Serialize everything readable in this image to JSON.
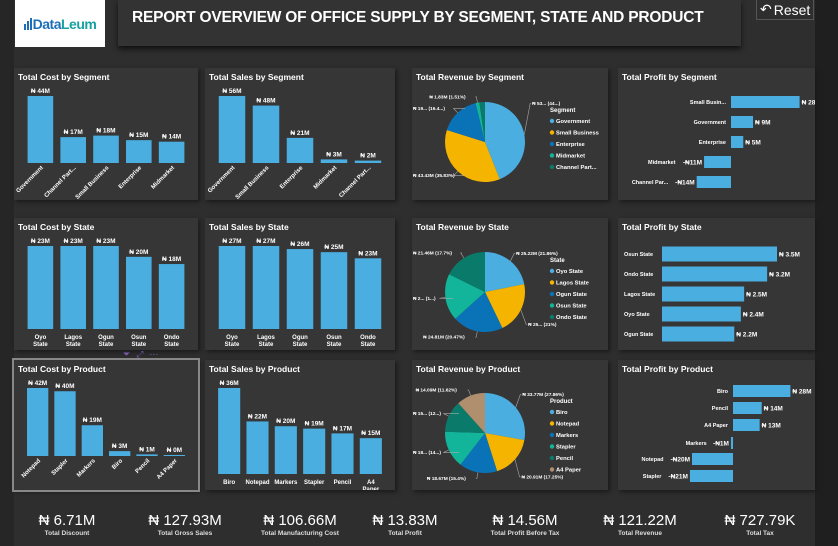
{
  "header": {
    "logo_text": "DataLeum",
    "title": "REPORT OVERVIEW OF OFFICE SUPPLY BY SEGMENT, STATE AND PRODUCT",
    "reset_label": "Reset"
  },
  "colors": {
    "bar": "#4aaee0",
    "pie": [
      "#4aaee0",
      "#f5b400",
      "#0a73b8",
      "#12b59a",
      "#0a7b6b",
      "#b08f6e"
    ]
  },
  "charts": [
    {
      "id": "cost-segment",
      "title": "Total Cost by Segment",
      "type": "vbar",
      "categories": [
        "Government",
        "Channel Part...",
        "Small Business",
        "Enterprise",
        "Midmarket"
      ],
      "values": [
        44,
        17,
        18,
        15,
        14
      ],
      "labels": [
        "₦ 44M",
        "₦ 17M",
        "₦ 18M",
        "₦ 15M",
        "₦ 14M"
      ]
    },
    {
      "id": "sales-segment",
      "title": "Total Sales by Segment",
      "type": "vbar",
      "categories": [
        "Government",
        "Small Business",
        "Enterprise",
        "Midmarket",
        "Channel Part..."
      ],
      "values": [
        56,
        48,
        21,
        3,
        2
      ],
      "labels": [
        "₦ 56M",
        "₦ 48M",
        "₦ 21M",
        "₦ 3M",
        "₦ 2M"
      ]
    },
    {
      "id": "revenue-segment",
      "title": "Total Revenue by Segment",
      "type": "pie",
      "legend_title": "Segment",
      "categories": [
        "Government",
        "Small Business",
        "Enterprise",
        "Midmarket",
        "Channel Part..."
      ],
      "values": [
        44,
        35.83,
        16.4,
        1.51,
        2.26
      ],
      "labels": [
        "₦ 53... (44...)",
        "₦ 43.43M (35.83%)",
        "₦ 19... (16.4...)",
        "₦ 1.83M (1.51%)",
        ""
      ]
    },
    {
      "id": "profit-segment",
      "title": "Total Profit by Segment",
      "type": "hbar",
      "categories": [
        "Small Busin...",
        "Government",
        "Enterprise",
        "Midmarket",
        "Channel Par..."
      ],
      "values": [
        28,
        9,
        5,
        -11,
        -14
      ],
      "labels": [
        "₦ 28M",
        "₦ 9M",
        "₦ 5M",
        "-₦11M",
        "-₦14M"
      ]
    },
    {
      "id": "cost-state",
      "title": "Total Cost by State",
      "type": "vbar",
      "categories": [
        "Oyo State",
        "Lagos State",
        "Ogun State",
        "Osun State",
        "Ondo State"
      ],
      "values": [
        23,
        23,
        23,
        20,
        18
      ],
      "labels": [
        "₦ 23M",
        "₦ 23M",
        "₦ 23M",
        "₦ 20M",
        "₦ 18M"
      ]
    },
    {
      "id": "sales-state",
      "title": "Total Sales by State",
      "type": "vbar",
      "categories": [
        "Oyo State",
        "Lagos State",
        "Ogun State",
        "Osun State",
        "Ondo State"
      ],
      "values": [
        27,
        27,
        26,
        25,
        23
      ],
      "labels": [
        "₦ 27M",
        "₦ 27M",
        "₦ 26M",
        "₦ 25M",
        "₦ 23M"
      ]
    },
    {
      "id": "revenue-state",
      "title": "Total Revenue by State",
      "type": "pie",
      "legend_title": "State",
      "categories": [
        "Oyo State",
        "Lagos State",
        "Ogun State",
        "Osun State",
        "Ondo State"
      ],
      "values": [
        21.86,
        21,
        20.47,
        19,
        17.7
      ],
      "labels": [
        "₦ 25.22M (21.86%)",
        "₦ 25... (21%)",
        "₦ 24.81M (20.47%)",
        "₦ 2... (1...)",
        "₦ 21.46M (17.7%)"
      ]
    },
    {
      "id": "profit-state",
      "title": "Total Profit by State",
      "type": "hbar",
      "categories": [
        "Osun State",
        "Ondo State",
        "Lagos State",
        "Oyo State",
        "Ogun State"
      ],
      "values": [
        3.5,
        3.2,
        2.5,
        2.4,
        2.2
      ],
      "labels": [
        "₦ 3.5M",
        "₦ 3.2M",
        "₦ 2.5M",
        "₦ 2.4M",
        "₦ 2.2M"
      ]
    },
    {
      "id": "cost-product",
      "title": "Total Cost by Product",
      "type": "vbar",
      "selected": true,
      "categories": [
        "Notepad",
        "Stapler",
        "Markers",
        "Biro",
        "Pencil",
        "A4 Paper"
      ],
      "values": [
        42,
        40,
        19,
        3,
        1,
        0
      ],
      "labels": [
        "₦ 42M",
        "₦ 40M",
        "₦ 19M",
        "₦ 3M",
        "₦ 1M",
        "₦ 0M"
      ]
    },
    {
      "id": "sales-product",
      "title": "Total Sales by Product",
      "type": "vbar",
      "categories": [
        "Biro",
        "Notepad",
        "Markers",
        "Stapler",
        "Pencil",
        "A4 Paper"
      ],
      "values": [
        36,
        22,
        20,
        19,
        17,
        15
      ],
      "labels": [
        "₦ 36M",
        "₦ 22M",
        "₦ 20M",
        "₦ 19M",
        "₦ 17M",
        "₦ 15M"
      ]
    },
    {
      "id": "revenue-product",
      "title": "Total Revenue by Product",
      "type": "pie",
      "legend_title": "Product",
      "categories": [
        "Biro",
        "Notepad",
        "Markers",
        "Stapler",
        "Pencil",
        "A4 Paper"
      ],
      "values": [
        27.86,
        17.25,
        15.4,
        15,
        12.87,
        11.62
      ],
      "labels": [
        "₦ 33.77M (27.86%)",
        "₦ 20.91M (17.25%)",
        "₦ 18.67M (15.4%)",
        "₦ 18... (14...)",
        "₦ 15... (12...)",
        "₦ 14.09M (11.62%)"
      ]
    },
    {
      "id": "profit-product",
      "title": "Total Profit by Product",
      "type": "hbar",
      "categories": [
        "Biro",
        "Pencil",
        "A4 Paper",
        "Markers",
        "Notepad",
        "Stapler"
      ],
      "values": [
        28,
        14,
        13,
        -1,
        -20,
        -21
      ],
      "labels": [
        "₦ 28M",
        "₦ 14M",
        "₦ 13M",
        "-₦1M",
        "-₦20M",
        "-₦21M"
      ]
    }
  ],
  "kpis": [
    {
      "value": "₦ 6.71M",
      "label": "Total Discount"
    },
    {
      "value": "₦ 127.93M",
      "label": "Total Gross Sales"
    },
    {
      "value": "₦ 106.66M",
      "label": "Total Manufacturing Cost"
    },
    {
      "value": "₦ 13.83M",
      "label": "Total Profit"
    },
    {
      "value": "₦ 14.56M",
      "label": "Total Profit Before Tax"
    },
    {
      "value": "₦ 121.22M",
      "label": "Total Revenue"
    },
    {
      "value": "₦ 727.79K",
      "label": "Total Tax"
    }
  ]
}
